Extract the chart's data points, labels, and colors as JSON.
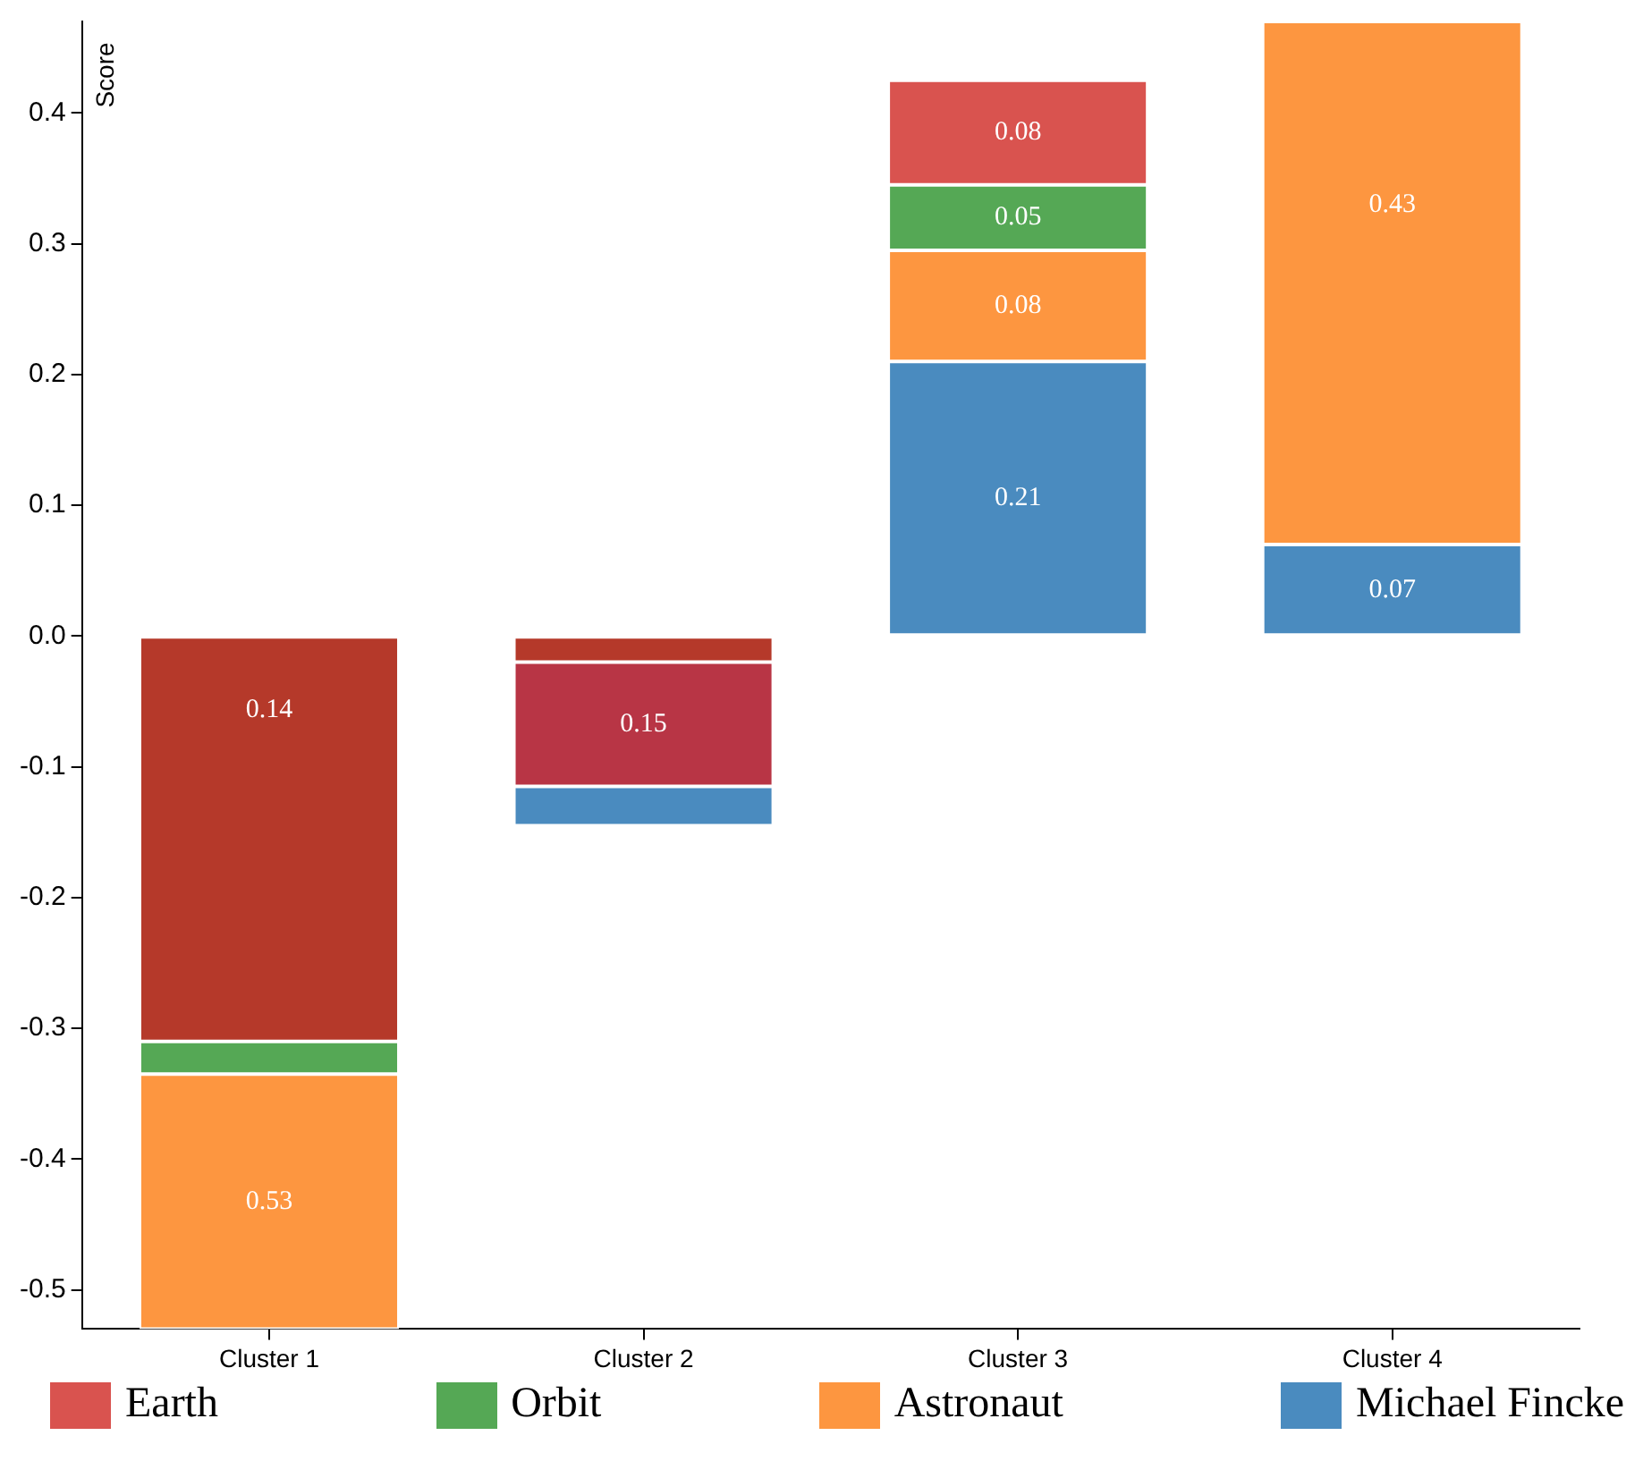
{
  "chart_data": {
    "type": "bar",
    "ylabel": "Score",
    "categories": [
      "Cluster 1",
      "Cluster 2",
      "Cluster 3",
      "Cluster 4"
    ],
    "series": [
      {
        "name": "Earth",
        "color": "#d9534f",
        "colors": [
          "#b5392a",
          "#b5392a",
          "#d9534f",
          null
        ],
        "base": [
          0,
          0,
          0.345,
          null
        ],
        "values": [
          -0.31,
          -0.02,
          0.08,
          null
        ],
        "value_labels": [
          null,
          null,
          "0.08",
          null
        ]
      },
      {
        "color": "#b83545",
        "base": [
          null,
          -0.02,
          null,
          null
        ],
        "values": [
          null,
          -0.095,
          null,
          null
        ]
      },
      {
        "name": "Orbit",
        "color": "#55a855",
        "base": [
          -0.31,
          null,
          0.295,
          null
        ],
        "values": [
          -0.025,
          null,
          0.05,
          null
        ],
        "value_labels": [
          null,
          null,
          "0.05",
          null
        ]
      },
      {
        "name": "Astronaut",
        "color": "#fd9640",
        "base": [
          -0.335,
          null,
          0.21,
          0.07
        ],
        "values": [
          -0.195,
          null,
          0.085,
          0.4
        ],
        "value_labels": [
          null,
          null,
          "0.08",
          null
        ]
      },
      {
        "name": "Michael Fincke",
        "color": "#4a8bbf",
        "base": [
          null,
          -0.115,
          0,
          0
        ],
        "values": [
          null,
          -0.03,
          0.21,
          0.07
        ],
        "value_labels": [
          null,
          null,
          "0.21",
          "0.07"
        ]
      }
    ],
    "annotations": [
      "0.14",
      "0.53",
      "0.15",
      "0.43"
    ],
    "ylim": [
      -0.53,
      0.47
    ],
    "yticks": [
      -0.5,
      -0.4,
      -0.3,
      -0.2,
      -0.1,
      {
        "value": 0,
        "label": "0.0"
      },
      0.1,
      0.2,
      0.3,
      0.4
    ],
    "grid": false,
    "legend": "bottom"
  }
}
